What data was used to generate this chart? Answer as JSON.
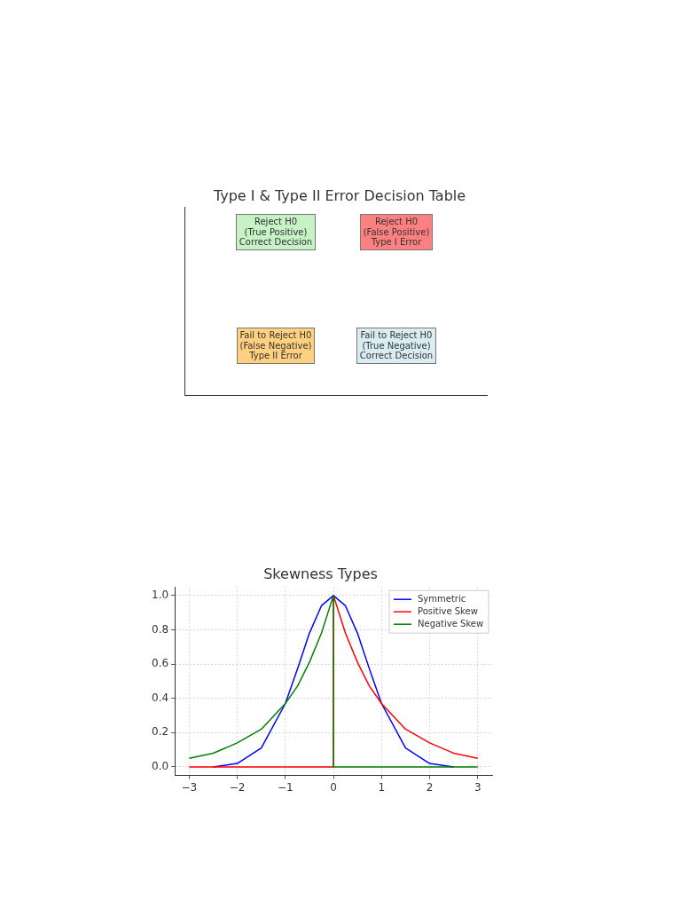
{
  "chart_data": [
    {
      "type": "other",
      "title": "Type I & Type II Error Decision Table",
      "categories": [
        "Reject H0\n(True Positive)\nCorrect Decision",
        "Reject H0\n(False Positive)\nType I Error",
        "Fail to Reject H0\n(False Negative)\nType II Error",
        "Fail to Reject H0\n(True Negative)\nCorrect Decision"
      ],
      "colors": [
        "#c6f2c6",
        "#ff8080",
        "#ffd080",
        "#d8ecf2"
      ]
    },
    {
      "type": "line",
      "title": "Skewness Types",
      "xlim": [
        -3.3,
        3.3
      ],
      "ylim": [
        -0.05,
        1.05
      ],
      "xticks": [
        {
          "value": -3,
          "label": "−3"
        },
        {
          "value": -2,
          "label": "−2"
        },
        {
          "value": -1,
          "label": "−1"
        },
        0,
        1,
        2,
        3
      ],
      "yticks": [
        {
          "value": 0,
          "label": "0.0"
        },
        {
          "value": 0.2,
          "label": "0.2"
        },
        {
          "value": 0.4,
          "label": "0.4"
        },
        {
          "value": 0.6,
          "label": "0.6"
        },
        {
          "value": 0.8,
          "label": "0.8"
        },
        {
          "value": 1,
          "label": "1.0"
        }
      ],
      "grid": true,
      "legend": "top right",
      "marker": "none",
      "line_style": "solid",
      "series": [
        {
          "name": "Symmetric",
          "color": "#0000ff",
          "x": [
            -2.5,
            -2,
            -1.5,
            -1,
            -0.75,
            -0.5,
            -0.25,
            0,
            0.25,
            0.5,
            0.75,
            1,
            1.5,
            2,
            2.5
          ],
          "values": [
            0,
            0.02,
            0.11,
            0.37,
            0.57,
            0.78,
            0.94,
            1,
            0.94,
            0.78,
            0.57,
            0.37,
            0.11,
            0.02,
            0
          ]
        },
        {
          "name": "Positive Skew",
          "color": "#ff0000",
          "x": [
            -3,
            0,
            0,
            0.25,
            0.5,
            0.75,
            1,
            1.5,
            2,
            2.5,
            3
          ],
          "values": [
            0,
            0,
            1,
            0.78,
            0.61,
            0.47,
            0.37,
            0.22,
            0.14,
            0.08,
            0.05
          ]
        },
        {
          "name": "Negative Skew",
          "color": "#008000",
          "x": [
            -3,
            -2.5,
            -2,
            -1.5,
            -1,
            -0.75,
            -0.5,
            -0.25,
            0,
            0,
            3
          ],
          "values": [
            0.05,
            0.08,
            0.14,
            0.22,
            0.37,
            0.47,
            0.61,
            0.78,
            1,
            0,
            0
          ]
        }
      ]
    }
  ]
}
